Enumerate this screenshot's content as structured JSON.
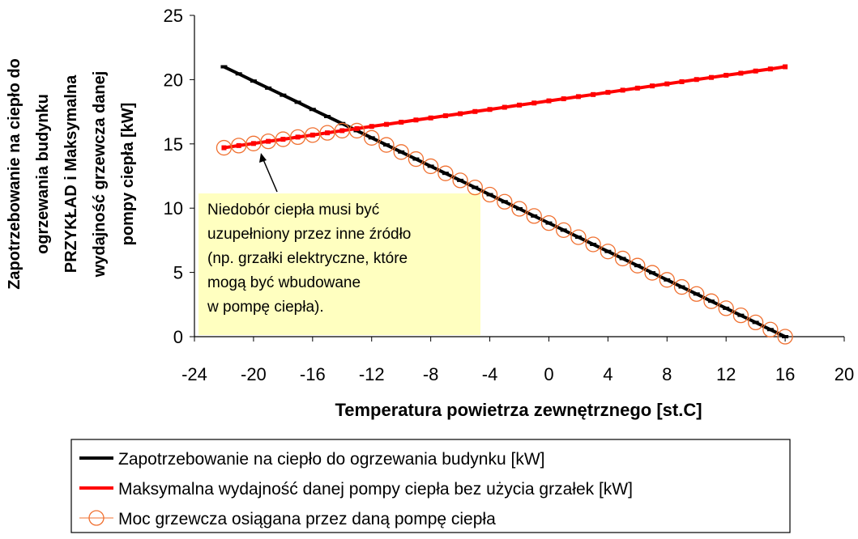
{
  "chart_data": {
    "type": "line",
    "x_label": "Temperatura powietrza zewnętrznego [st.C]",
    "y_label": [
      "Zapotrzebowanie na ciepło do",
      "ogrzewania budynku",
      "PRZYKŁAD i Maksymalna",
      "wydajność grzewcza danej",
      "pompy ciepła [kW]"
    ],
    "annotation": [
      "Niedobór ciepła musi być",
      "uzupełniony przez inne źródło",
      "(np. grzałki elektryczne, które",
      "mogą być wbudowane",
      "w pompę ciepła)."
    ],
    "x": [
      -22,
      -21,
      -20,
      -19,
      -18,
      -17,
      -16,
      -15,
      -14,
      -13,
      -12,
      -11,
      -10,
      -9,
      -8,
      -7,
      -6,
      -5,
      -4,
      -3,
      -2,
      -1,
      0,
      1,
      2,
      3,
      4,
      5,
      6,
      7,
      8,
      9,
      10,
      11,
      12,
      13,
      14,
      15,
      16
    ],
    "series": [
      {
        "name": "Zapotrzebowanie na ciepło do ogrzewania budynku [kW]",
        "color": "#000000",
        "marker": "dash",
        "values": [
          21,
          20.45,
          19.89,
          19.34,
          18.79,
          18.24,
          17.68,
          17.13,
          16.58,
          16.03,
          15.47,
          14.92,
          14.37,
          13.82,
          13.26,
          12.71,
          12.16,
          11.61,
          11.05,
          10.5,
          9.95,
          9.39,
          8.84,
          8.29,
          7.74,
          7.18,
          6.63,
          6.08,
          5.53,
          4.97,
          4.42,
          3.87,
          3.32,
          2.76,
          2.21,
          1.66,
          1.11,
          0.55,
          0
        ]
      },
      {
        "name": "Maksymalna wydajność danej pompy ciepła bez użycia grzałek [kW]",
        "color": "#ff0000",
        "marker": "square",
        "values": [
          14.7,
          14.87,
          15.03,
          15.2,
          15.36,
          15.53,
          15.69,
          15.86,
          16.03,
          16.19,
          16.36,
          16.52,
          16.69,
          16.86,
          17.02,
          17.19,
          17.35,
          17.52,
          17.68,
          17.85,
          18.02,
          18.18,
          18.35,
          18.51,
          18.68,
          18.84,
          19.01,
          19.18,
          19.34,
          19.51,
          19.67,
          19.84,
          20.01,
          20.17,
          20.34,
          20.5,
          20.67,
          20.83,
          21
        ]
      },
      {
        "name": "Moc grzewcza osiągana przez daną pompę ciepła",
        "color": "#f07030",
        "marker": "circle",
        "values": [
          14.7,
          14.87,
          15.03,
          15.2,
          15.36,
          15.53,
          15.69,
          15.86,
          16.03,
          16.03,
          15.47,
          14.92,
          14.37,
          13.82,
          13.26,
          12.71,
          12.16,
          11.61,
          11.05,
          10.5,
          9.95,
          9.39,
          8.84,
          8.29,
          7.74,
          7.18,
          6.63,
          6.08,
          5.53,
          4.97,
          4.42,
          3.87,
          3.32,
          2.76,
          2.21,
          1.66,
          1.11,
          0.55,
          0
        ]
      }
    ],
    "xlim": [
      -24,
      20
    ],
    "xticks": [
      -24,
      -20,
      -16,
      -12,
      -8,
      -4,
      0,
      4,
      8,
      12,
      16,
      20
    ],
    "ylim": [
      0,
      25
    ],
    "yticks": [
      0,
      5,
      10,
      15,
      20,
      25
    ]
  }
}
